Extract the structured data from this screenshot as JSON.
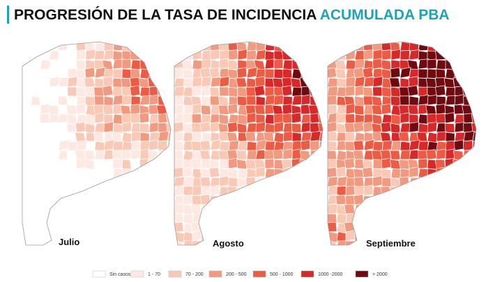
{
  "title": {
    "main": "PROGRESIÓN DE LA TASA DE INCIDENCIA",
    "highlight": "ACUMULADA PBA"
  },
  "maps": [
    {
      "label": "Julio"
    },
    {
      "label": "Agosto"
    },
    {
      "label": "Septiembre"
    }
  ],
  "legend": [
    {
      "label": "Sin casos",
      "color": "#ffffff"
    },
    {
      "label": "1 - 70",
      "color": "#fde9e2"
    },
    {
      "label": "70 - 200",
      "color": "#f9c9b6"
    },
    {
      "label": "200 - 500",
      "color": "#f29a80"
    },
    {
      "label": "500 - 1000",
      "color": "#ec5c45"
    },
    {
      "label": "1000 -2000",
      "color": "#d7282a"
    },
    {
      "label": "> 2000",
      "color": "#6e0a10"
    }
  ]
}
